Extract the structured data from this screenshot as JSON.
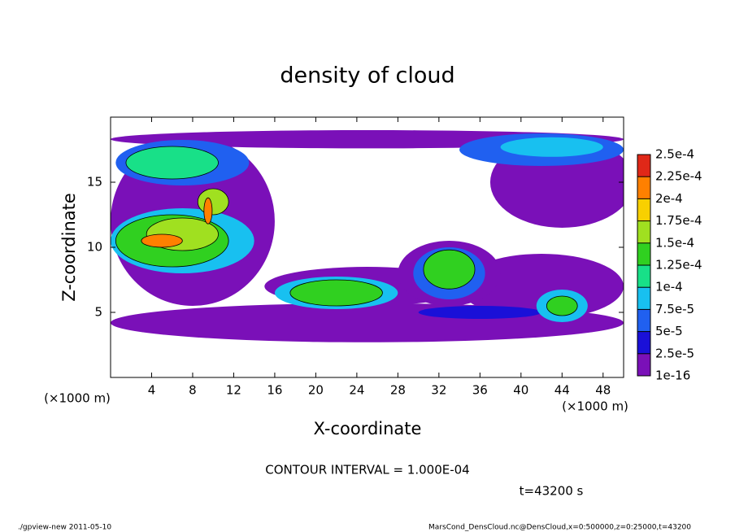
{
  "chart_data": {
    "type": "contour",
    "title": "density of cloud",
    "xlabel": "X-coordinate",
    "ylabel": "Z-coordinate",
    "xunit": "(×1000 m)",
    "yunit": "(×1000 m)",
    "contour_note": "CONTOUR INTERVAL = 1.000E-04",
    "time_note": "t=43200 s",
    "footer_left": "./gpview-new  2011-05-10",
    "footer_right": "MarsCond_DensCloud.nc@DensCloud,x=0:500000,z=0:25000,t=43200",
    "xlim": [
      0,
      50
    ],
    "ylim": [
      0,
      20
    ],
    "xticks": [
      4,
      8,
      12,
      16,
      20,
      24,
      28,
      32,
      36,
      40,
      44,
      48
    ],
    "yticks": [
      5,
      10,
      15
    ],
    "levels": [
      {
        "value": 1e-16,
        "label": "1e-16"
      },
      {
        "value": 2.5e-05,
        "label": "2.5e-5"
      },
      {
        "value": 5e-05,
        "label": "5e-5"
      },
      {
        "value": 7.5e-05,
        "label": "7.5e-5"
      },
      {
        "value": 0.0001,
        "label": "1e-4"
      },
      {
        "value": 0.000125,
        "label": "1.25e-4"
      },
      {
        "value": 0.00015,
        "label": "1.5e-4"
      },
      {
        "value": 0.000175,
        "label": "1.75e-4"
      },
      {
        "value": 0.0002,
        "label": "2e-4"
      },
      {
        "value": 0.000225,
        "label": "2.25e-4"
      },
      {
        "value": 0.00025,
        "label": "2.5e-4"
      }
    ],
    "colors": [
      "#7a10b8",
      "#1a10d8",
      "#2060f0",
      "#18c0f0",
      "#18e088",
      "#30d020",
      "#a0e020",
      "#f8d000",
      "#ff8000",
      "#e02818"
    ],
    "regions": [
      {
        "x": 25,
        "z": 4.2,
        "w": 50,
        "h": 3,
        "level": 0
      },
      {
        "x": 25,
        "z": 18.3,
        "w": 50,
        "h": 1.4,
        "level": 0
      },
      {
        "x": 8,
        "z": 12,
        "w": 16,
        "h": 13,
        "level": 0
      },
      {
        "x": 44,
        "z": 15,
        "w": 14,
        "h": 7,
        "level": 0
      },
      {
        "x": 25,
        "z": 7,
        "w": 20,
        "h": 3,
        "level": 0
      },
      {
        "x": 42,
        "z": 7,
        "w": 16,
        "h": 5,
        "level": 0
      },
      {
        "x": 33,
        "z": 8,
        "w": 10,
        "h": 5,
        "level": 0
      },
      {
        "x": 36,
        "z": 5,
        "w": 12,
        "h": 1,
        "level": 1
      },
      {
        "x": 7,
        "z": 16.5,
        "w": 13,
        "h": 3.5,
        "level": 2
      },
      {
        "x": 6,
        "z": 16.5,
        "w": 9,
        "h": 2.5,
        "level": 4
      },
      {
        "x": 7,
        "z": 10.5,
        "w": 14,
        "h": 5,
        "level": 3
      },
      {
        "x": 6,
        "z": 10.5,
        "w": 11,
        "h": 4,
        "level": 5
      },
      {
        "x": 7,
        "z": 11,
        "w": 7,
        "h": 2.5,
        "level": 6
      },
      {
        "x": 5,
        "z": 10.5,
        "w": 4,
        "h": 1,
        "level": 8
      },
      {
        "x": 10,
        "z": 13.5,
        "w": 3,
        "h": 2,
        "level": 6
      },
      {
        "x": 9.5,
        "z": 12.8,
        "w": 0.8,
        "h": 2,
        "level": 8
      },
      {
        "x": 22,
        "z": 6.5,
        "w": 12,
        "h": 2.5,
        "level": 3
      },
      {
        "x": 22,
        "z": 6.5,
        "w": 9,
        "h": 2,
        "level": 5
      },
      {
        "x": 33,
        "z": 8,
        "w": 7,
        "h": 4,
        "level": 2
      },
      {
        "x": 33,
        "z": 8.3,
        "w": 5,
        "h": 3,
        "level": 5
      },
      {
        "x": 44,
        "z": 5.5,
        "w": 5,
        "h": 2.5,
        "level": 3
      },
      {
        "x": 44,
        "z": 5.5,
        "w": 3,
        "h": 1.5,
        "level": 5
      },
      {
        "x": 42,
        "z": 17.5,
        "w": 16,
        "h": 2.5,
        "level": 2
      },
      {
        "x": 43,
        "z": 17.7,
        "w": 10,
        "h": 1.5,
        "level": 3
      }
    ]
  }
}
